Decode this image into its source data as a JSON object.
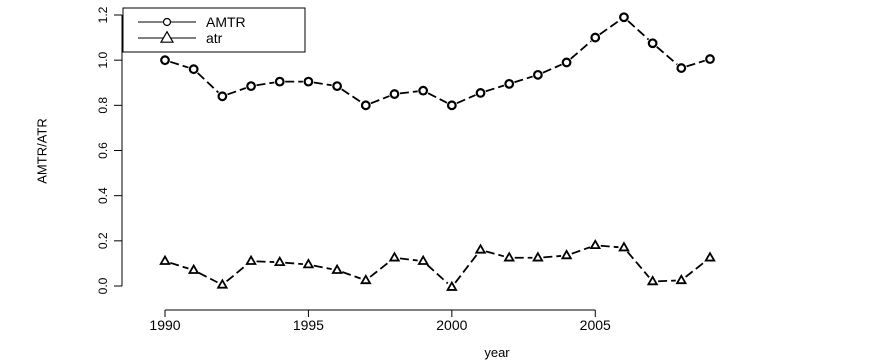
{
  "chart_data": {
    "type": "line",
    "title": "",
    "xlabel": "year",
    "ylabel": "AMTR/ATR",
    "x": [
      1990,
      1991,
      1992,
      1993,
      1994,
      1995,
      1996,
      1997,
      1998,
      1999,
      2000,
      2001,
      2002,
      2003,
      2004,
      2005,
      2006,
      2007,
      2008,
      2009
    ],
    "x_ticks": [
      1990,
      1995,
      2000,
      2005
    ],
    "x_tick_labels": [
      "1990",
      "1995",
      "2000",
      "2005"
    ],
    "xlim": [
      1990,
      2009
    ],
    "y_ticks": [
      0.0,
      0.2,
      0.4,
      0.6,
      0.8,
      1.0,
      1.2
    ],
    "y_tick_labels": [
      "0.0",
      "0.2",
      "0.4",
      "0.6",
      "0.8",
      "1.0",
      "1.2"
    ],
    "ylim": [
      0.0,
      1.2
    ],
    "grid": false,
    "legend_position": "top-left",
    "series": [
      {
        "name": "AMTR",
        "marker": "circle",
        "line": "dashed",
        "values": [
          1.0,
          0.96,
          0.84,
          0.885,
          0.905,
          0.905,
          0.885,
          0.8,
          0.85,
          0.865,
          0.8,
          0.855,
          0.895,
          0.935,
          0.99,
          1.1,
          1.19,
          1.075,
          0.965,
          1.005
        ]
      },
      {
        "name": "atr",
        "marker": "triangle",
        "line": "dashed",
        "values": [
          0.11,
          0.07,
          0.005,
          0.11,
          0.105,
          0.095,
          0.07,
          0.025,
          0.125,
          0.11,
          -0.005,
          0.16,
          0.125,
          0.125,
          0.135,
          0.18,
          0.17,
          0.02,
          0.025,
          0.125
        ]
      }
    ]
  }
}
